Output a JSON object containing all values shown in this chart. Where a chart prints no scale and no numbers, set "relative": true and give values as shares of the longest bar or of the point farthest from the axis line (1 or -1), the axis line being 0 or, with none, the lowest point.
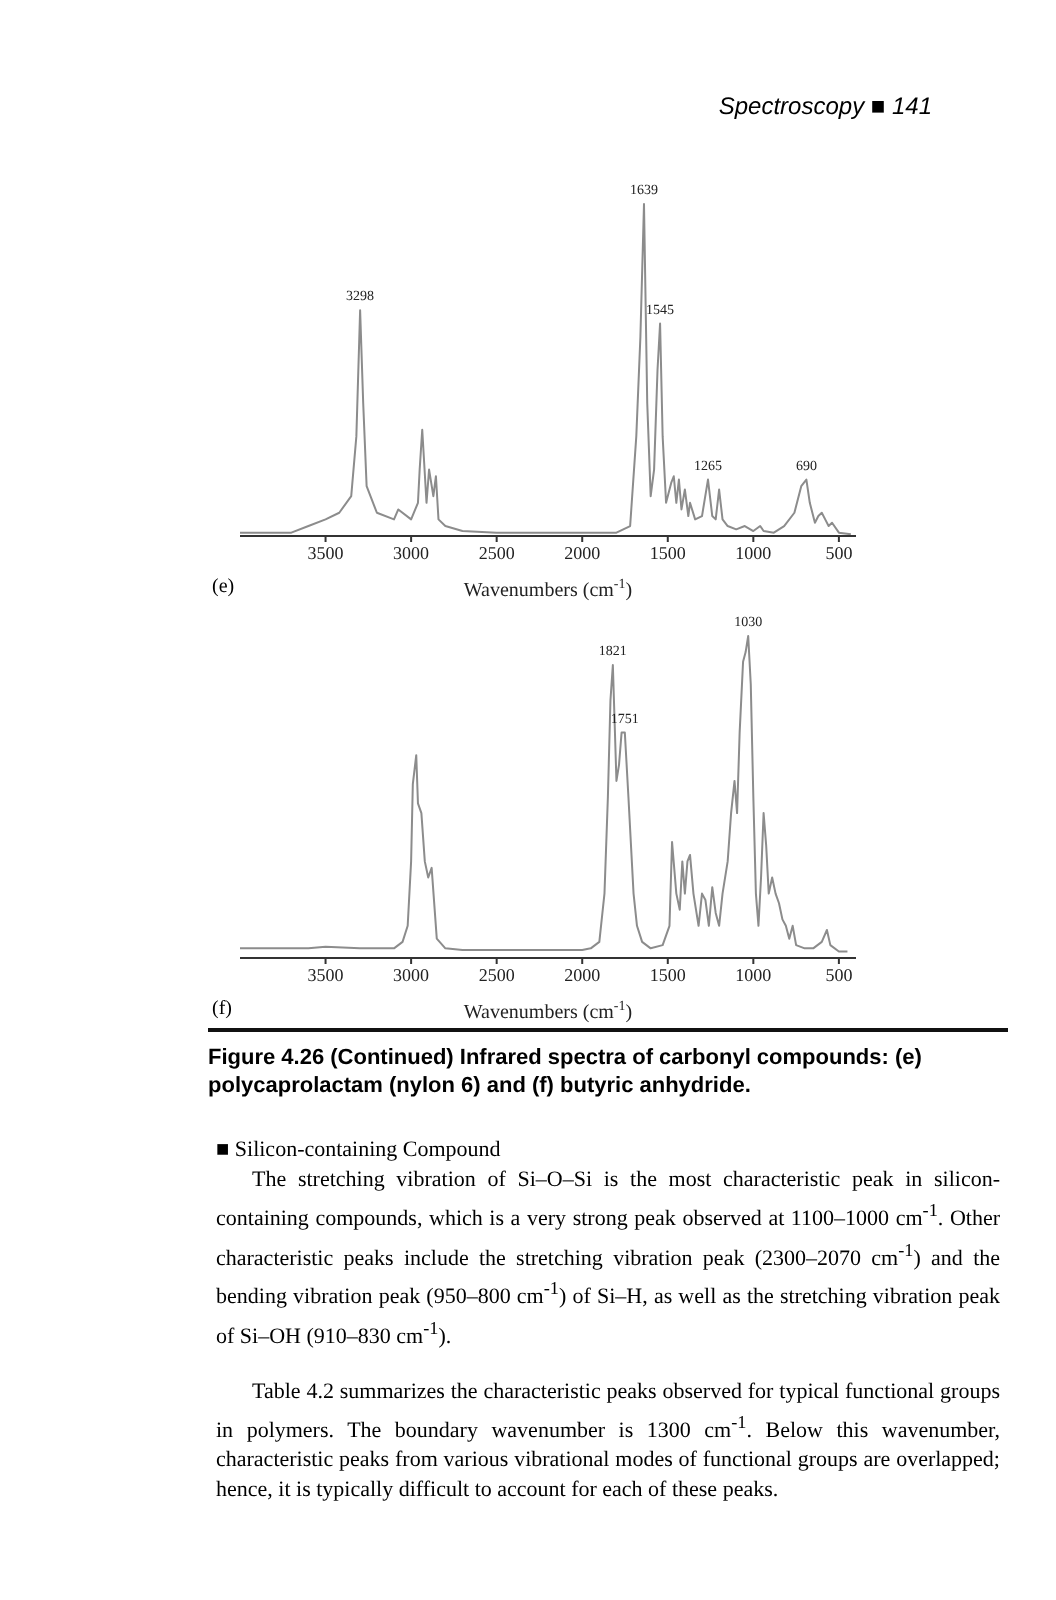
{
  "chart_data": [
    {
      "type": "line",
      "relative": true,
      "xlabel": "Wavenumbers (cm$^{-1}$)",
      "xlim": [
        4000,
        400
      ],
      "xticks": [
        3500,
        3000,
        2500,
        2000,
        1500,
        1000,
        500
      ],
      "x": [
        4000,
        3800,
        3700,
        3600,
        3500,
        3420,
        3350,
        3320,
        3298,
        3280,
        3260,
        3200,
        3100,
        3075,
        3000,
        2960,
        2950,
        2935,
        2910,
        2895,
        2870,
        2855,
        2840,
        2800,
        2700,
        2500,
        2000,
        1900,
        1800,
        1720,
        1684,
        1660,
        1639,
        1620,
        1600,
        1580,
        1560,
        1545,
        1530,
        1510,
        1480,
        1465,
        1450,
        1435,
        1420,
        1400,
        1380,
        1370,
        1340,
        1300,
        1265,
        1240,
        1220,
        1200,
        1180,
        1150,
        1100,
        1050,
        1000,
        960,
        940,
        880,
        820,
        760,
        720,
        690,
        670,
        640,
        620,
        600,
        580,
        560,
        540,
        500,
        430
      ],
      "values": [
        0.01,
        0.01,
        0.01,
        0.03,
        0.05,
        0.07,
        0.12,
        0.3,
        0.68,
        0.4,
        0.15,
        0.07,
        0.05,
        0.08,
        0.05,
        0.1,
        0.2,
        0.32,
        0.1,
        0.2,
        0.12,
        0.18,
        0.05,
        0.03,
        0.015,
        0.01,
        0.01,
        0.01,
        0.01,
        0.03,
        0.3,
        0.6,
        1.0,
        0.4,
        0.12,
        0.2,
        0.5,
        0.64,
        0.3,
        0.1,
        0.16,
        0.18,
        0.1,
        0.17,
        0.08,
        0.14,
        0.06,
        0.1,
        0.05,
        0.06,
        0.17,
        0.06,
        0.05,
        0.14,
        0.05,
        0.03,
        0.02,
        0.03,
        0.015,
        0.03,
        0.015,
        0.01,
        0.03,
        0.07,
        0.15,
        0.17,
        0.1,
        0.04,
        0.06,
        0.07,
        0.05,
        0.03,
        0.04,
        0.01,
        0.005
      ],
      "color": "#8c8c8c",
      "annotations": [
        "Spectroscopy ■ 141",
        "(e)",
        {
          "text": "3298",
          "x": 3298,
          "y": 0.68
        },
        {
          "text": "1639",
          "x": 1639,
          "y": 1.0
        },
        {
          "text": "1545",
          "x": 1545,
          "y": 0.64
        },
        {
          "text": "1265",
          "x": 1265,
          "y": 0.17
        },
        {
          "text": "690",
          "x": 690,
          "y": 0.17
        }
      ]
    },
    {
      "type": "line",
      "relative": true,
      "xlabel": "Wavenumbers (cm$^{-1}$)",
      "xlim": [
        4000,
        400
      ],
      "xticks": [
        3500,
        3000,
        2500,
        2000,
        1500,
        1000,
        500
      ],
      "x": [
        4000,
        3600,
        3500,
        3300,
        3100,
        3050,
        3020,
        3000,
        2990,
        2970,
        2960,
        2940,
        2920,
        2900,
        2880,
        2850,
        2800,
        2700,
        2000,
        1950,
        1900,
        1870,
        1850,
        1835,
        1821,
        1800,
        1785,
        1770,
        1751,
        1730,
        1700,
        1680,
        1650,
        1600,
        1530,
        1490,
        1475,
        1450,
        1430,
        1415,
        1400,
        1385,
        1370,
        1350,
        1320,
        1300,
        1280,
        1260,
        1240,
        1220,
        1200,
        1180,
        1150,
        1130,
        1110,
        1095,
        1080,
        1060,
        1045,
        1030,
        1015,
        1000,
        985,
        970,
        955,
        940,
        925,
        910,
        890,
        870,
        850,
        830,
        810,
        790,
        770,
        750,
        700,
        650,
        600,
        570,
        550,
        500,
        450
      ],
      "values": [
        0.03,
        0.03,
        0.035,
        0.03,
        0.03,
        0.05,
        0.1,
        0.3,
        0.54,
        0.63,
        0.48,
        0.45,
        0.3,
        0.25,
        0.28,
        0.06,
        0.03,
        0.025,
        0.025,
        0.03,
        0.05,
        0.2,
        0.5,
        0.8,
        0.91,
        0.55,
        0.6,
        0.7,
        0.7,
        0.5,
        0.2,
        0.1,
        0.05,
        0.03,
        0.04,
        0.1,
        0.36,
        0.2,
        0.15,
        0.3,
        0.2,
        0.3,
        0.32,
        0.2,
        0.1,
        0.2,
        0.18,
        0.1,
        0.22,
        0.14,
        0.1,
        0.2,
        0.3,
        0.45,
        0.55,
        0.45,
        0.7,
        0.92,
        0.95,
        1.0,
        0.85,
        0.5,
        0.2,
        0.1,
        0.25,
        0.45,
        0.35,
        0.2,
        0.25,
        0.2,
        0.17,
        0.12,
        0.1,
        0.06,
        0.1,
        0.04,
        0.03,
        0.03,
        0.05,
        0.087,
        0.04,
        0.02,
        0.02
      ],
      "color": "#8c8c8c",
      "annotations": [
        "(f)",
        "Figure 4.26 (Continued)   Infrared spectra of carbonyl compounds: (e) polycaprolactam (nylon 6) and (f) butyric anhydride.",
        "■  Silicon-containing Compound",
        "The stretching vibration of Si–O–Si is the most characteristic peak in silicon-containing compounds, which is a very strong peak observed at 1100–1000 cm$^{-1}$. Other characteristic peaks include the stretching vibration peak (2300–2070 cm$^{-1}$) and the bending vibration peak (950–800 cm$^{-1}$) of Si–H, as well as the stretching vibration peak of Si–OH (910–830 cm$^{-1}$).",
        "Table 4.2 summarizes the characteristic peaks observed for typical functional groups in polymers. The boundary wavenumber is 1300 cm$^{-1}$. Below this wavenumber, characteristic peaks from various vibrational modes of functional groups are overlapped; hence, it is typically difficult to account for each of these peaks.",
        {
          "text": "1821",
          "x": 1821,
          "y": 0.91
        },
        {
          "text": "1751",
          "x": 1751,
          "y": 0.7
        },
        {
          "text": "1030",
          "x": 1030,
          "y": 1.0
        }
      ]
    }
  ]
}
